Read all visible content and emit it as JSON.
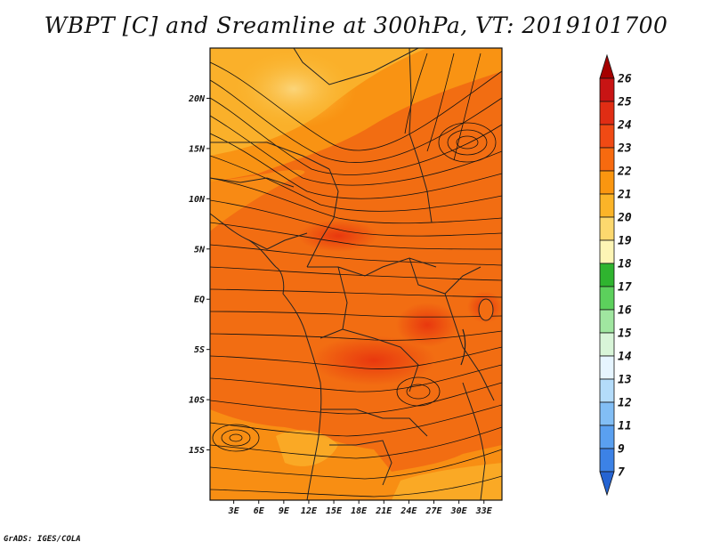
{
  "title": "WBPT [C] and Sreamline at 300hPa, VT: 2019101700",
  "footer": "GrADS: IGES/COLA",
  "map": {
    "lat_labels": [
      "20N",
      "15N",
      "10N",
      "5N",
      "EQ",
      "5S",
      "10S",
      "15S"
    ],
    "lat_values": [
      20,
      15,
      10,
      5,
      0,
      -5,
      -10,
      -15
    ],
    "lon_labels": [
      "3E",
      "6E",
      "9E",
      "12E",
      "15E",
      "18E",
      "21E",
      "24E",
      "27E",
      "30E",
      "33E"
    ],
    "lon_values": [
      3,
      6,
      9,
      12,
      15,
      18,
      21,
      24,
      27,
      30,
      33
    ],
    "lon_range": [
      0,
      35
    ],
    "lat_range": [
      -20,
      25
    ]
  },
  "colorbar": {
    "labels": [
      "26",
      "25",
      "24",
      "23",
      "22",
      "21",
      "20",
      "19",
      "18",
      "17",
      "16",
      "15",
      "14",
      "13",
      "12",
      "11",
      "9",
      "7"
    ],
    "colors": [
      "#a50000",
      "#c81414",
      "#e02d14",
      "#f04a14",
      "#f76a0f",
      "#fa9610",
      "#fbb428",
      "#fcd86e",
      "#fdf5b5",
      "#2fb42f",
      "#5cd05c",
      "#a0e6a0",
      "#d8f5d8",
      "#e6f5ff",
      "#b4dcfa",
      "#82bef5",
      "#5aa0f0",
      "#3c82e6",
      "#2564d2"
    ]
  }
}
